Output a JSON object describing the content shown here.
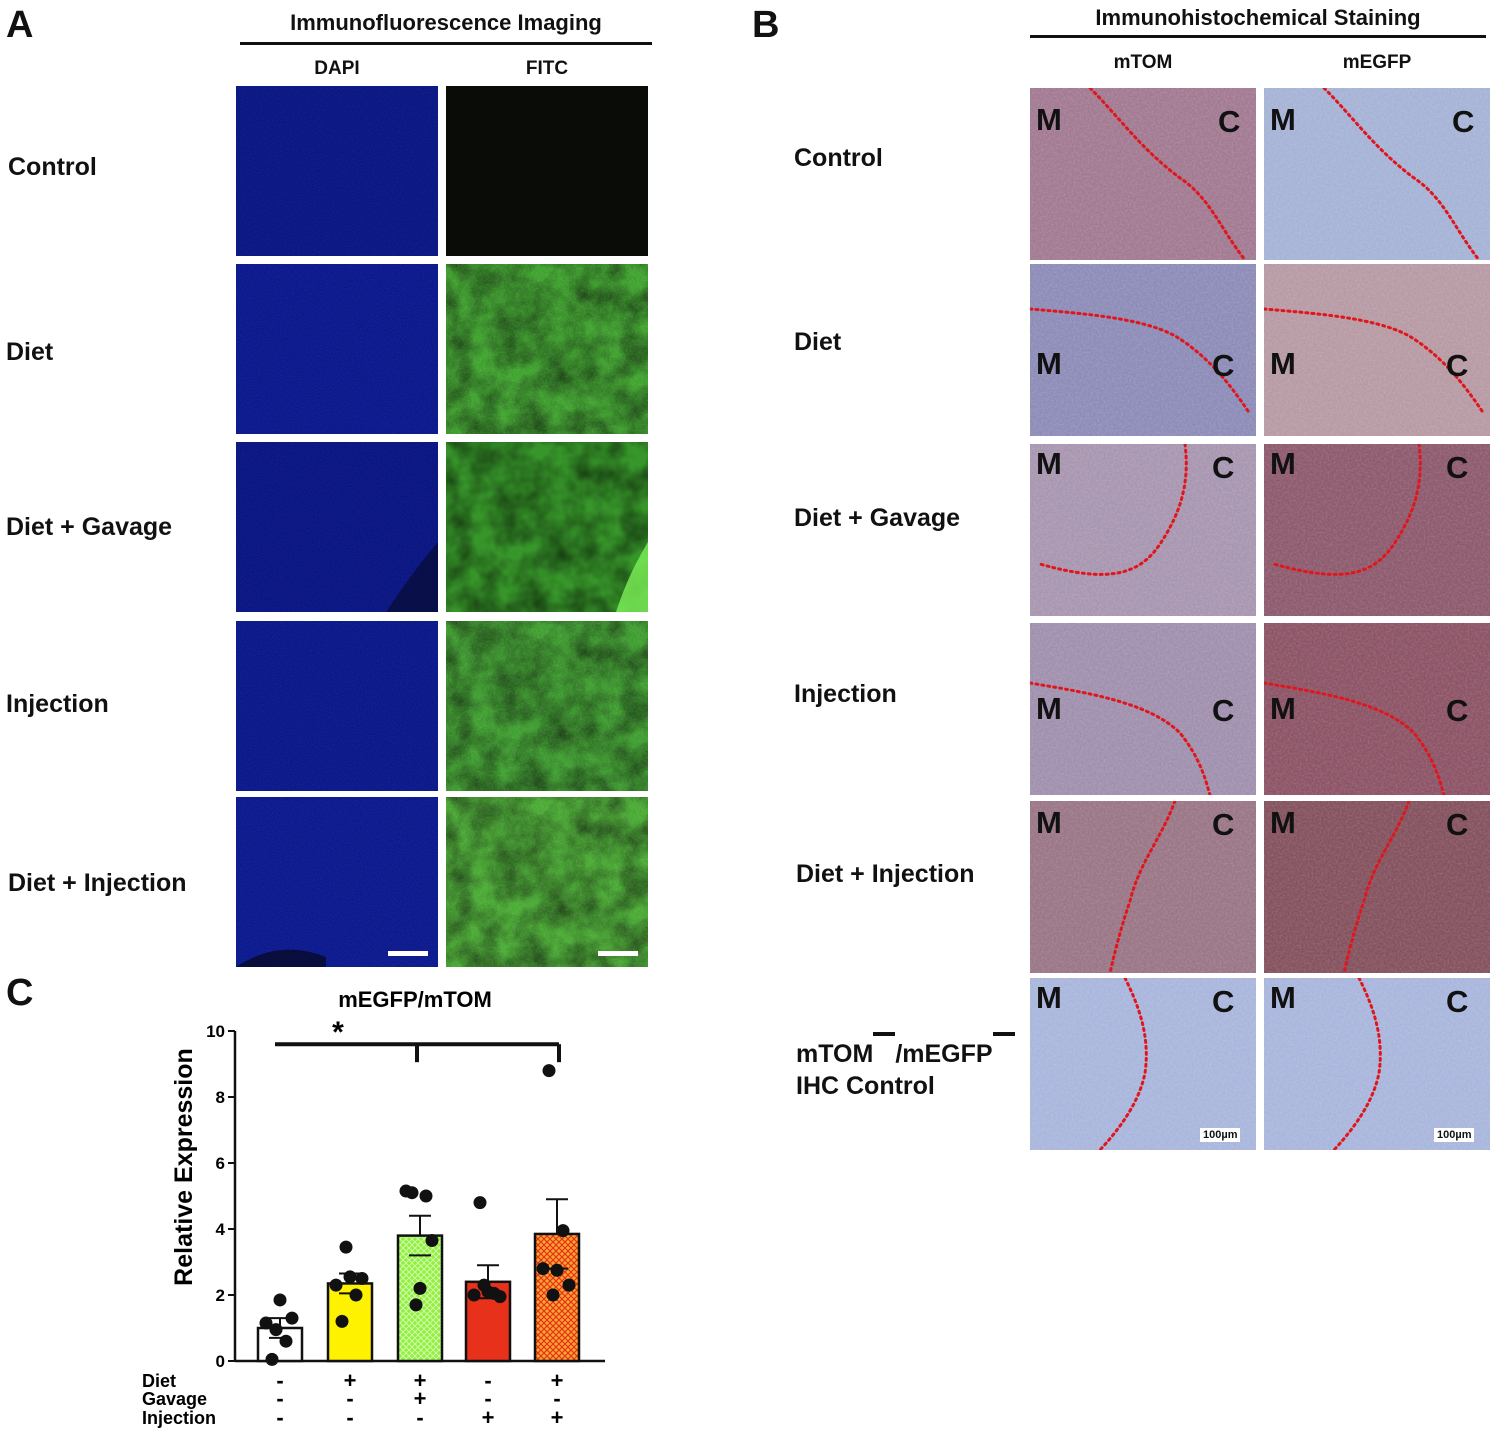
{
  "panel_a": {
    "letter": "A",
    "title": "Immunofluorescence Imaging",
    "columns": [
      "DAPI",
      "FITC"
    ],
    "rows": [
      "Control",
      "Diet",
      "Diet + Gavage",
      "Injection",
      "Diet + Injection"
    ]
  },
  "panel_b": {
    "letter": "B",
    "title": "Immunohistochemical Staining",
    "columns": [
      "mTOM",
      "mEGFP"
    ],
    "rows": [
      "Control",
      "Diet",
      "Diet + Gavage",
      "Injection",
      "Diet + Injection"
    ],
    "last_row": {
      "line1": "mTOM",
      "line1b": "/mEGFP",
      "line2": "IHC Control"
    },
    "region_m": "M",
    "region_c": "C",
    "scale_label": "100µm"
  },
  "panel_c": {
    "letter": "C"
  },
  "chart_data": {
    "type": "bar",
    "title": "mEGFP/mTOM",
    "ylabel": "Relative Expression",
    "ylim": [
      0,
      10
    ],
    "yticks": [
      "0",
      "2",
      "4",
      "6",
      "8",
      "10"
    ],
    "significance": "*",
    "row_labels": [
      "Diet",
      "Gavage",
      "Injection"
    ],
    "condition_signs": [
      [
        "-",
        "-",
        "-"
      ],
      [
        "+",
        "-",
        "-"
      ],
      [
        "+",
        "+",
        "-"
      ],
      [
        "-",
        "-",
        "+"
      ],
      [
        "+",
        "-",
        "+"
      ]
    ],
    "bars": [
      {
        "mean": 1.0,
        "sem": 0.3,
        "color": "#ffffff",
        "points": [
          0.05,
          0.6,
          1.15,
          1.3,
          1.85,
          0.95
        ]
      },
      {
        "mean": 2.35,
        "sem": 0.3,
        "color": "#fff200",
        "points": [
          1.2,
          2.0,
          2.3,
          2.5,
          2.55,
          3.45
        ]
      },
      {
        "mean": 3.8,
        "sem": 0.6,
        "color": "#8ff23a",
        "points": [
          5.1,
          5.0,
          5.15,
          3.65,
          2.2,
          1.7
        ]
      },
      {
        "mean": 2.4,
        "sem": 0.5,
        "color": "#e8311a",
        "points": [
          4.8,
          2.05,
          2.0,
          1.95,
          2.1,
          2.3
        ]
      },
      {
        "mean": 3.85,
        "sem": 1.05,
        "color": "#f5a830",
        "points": [
          8.8,
          3.95,
          2.8,
          2.3,
          2.75,
          2.0
        ]
      }
    ]
  }
}
